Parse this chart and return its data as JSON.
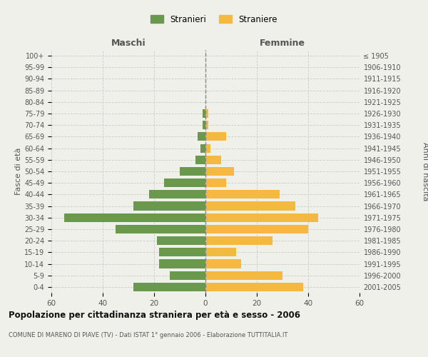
{
  "age_groups": [
    "100+",
    "95-99",
    "90-94",
    "85-89",
    "80-84",
    "75-79",
    "70-74",
    "65-69",
    "60-64",
    "55-59",
    "50-54",
    "45-49",
    "40-44",
    "35-39",
    "30-34",
    "25-29",
    "20-24",
    "15-19",
    "10-14",
    "5-9",
    "0-4"
  ],
  "birth_years": [
    "≤ 1905",
    "1906-1910",
    "1911-1915",
    "1916-1920",
    "1921-1925",
    "1926-1930",
    "1931-1935",
    "1936-1940",
    "1941-1945",
    "1946-1950",
    "1951-1955",
    "1956-1960",
    "1961-1965",
    "1966-1970",
    "1971-1975",
    "1976-1980",
    "1981-1985",
    "1986-1990",
    "1991-1995",
    "1996-2000",
    "2001-2005"
  ],
  "maschi": [
    0,
    0,
    0,
    0,
    0,
    1,
    1,
    3,
    2,
    4,
    10,
    16,
    22,
    28,
    55,
    35,
    19,
    18,
    18,
    14,
    28
  ],
  "femmine": [
    0,
    0,
    0,
    0,
    0,
    1,
    1,
    8,
    2,
    6,
    11,
    8,
    29,
    35,
    44,
    40,
    26,
    12,
    14,
    30,
    38
  ],
  "male_color": "#6a994e",
  "female_color": "#f5b942",
  "bg_color": "#f0f0eb",
  "grid_color": "#cccccc",
  "bar_height": 0.75,
  "xlim": 60,
  "title": "Popolazione per cittadinanza straniera per età e sesso - 2006",
  "subtitle": "COMUNE DI MARENO DI PIAVE (TV) - Dati ISTAT 1° gennaio 2006 - Elaborazione TUTTITALIA.IT",
  "ylabel_left": "Fasce di età",
  "ylabel_right": "Anni di nascita",
  "xlabel_maschi": "Maschi",
  "xlabel_femmine": "Femmine",
  "legend_maschi": "Stranieri",
  "legend_femmine": "Straniere"
}
